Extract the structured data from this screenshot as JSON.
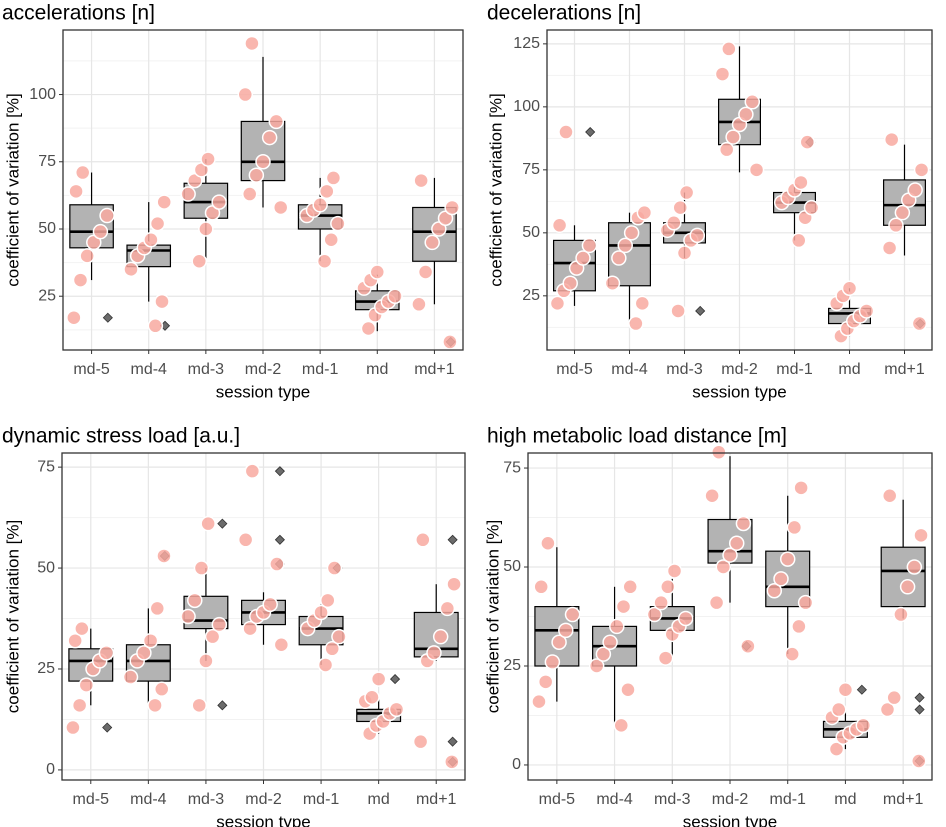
{
  "chart_data": [
    {
      "type": "box",
      "title": "accelerations [n]",
      "x_label": "session type",
      "y_label": "coefficient of variation [%]",
      "categories": [
        "md-5",
        "md-4",
        "md-3",
        "md-2",
        "md-1",
        "md",
        "md+1"
      ],
      "ylim": [
        5,
        124
      ],
      "yticks": [
        25,
        50,
        75,
        100
      ],
      "grid": true,
      "box_color": "#b3b3b3",
      "point_color": "#f8a9a0",
      "outlier_color": "#6b6b6b",
      "boxes": [
        {
          "whisker_low": 31,
          "q1": 43,
          "median": 49,
          "q3": 59,
          "whisker_high": 71,
          "outliers": [
            17
          ],
          "points": [
            17,
            31,
            40,
            45,
            49,
            55,
            64,
            71
          ]
        },
        {
          "whisker_low": 23,
          "q1": 36,
          "median": 42,
          "q3": 44,
          "whisker_high": 60,
          "outliers": [
            14
          ],
          "points": [
            14,
            23,
            35,
            40,
            43,
            46,
            52,
            60
          ]
        },
        {
          "whisker_low": 38,
          "q1": 54,
          "median": 60,
          "q3": 67,
          "whisker_high": 76,
          "outliers": [],
          "points": [
            38,
            50,
            56,
            60,
            63,
            68,
            72,
            76
          ]
        },
        {
          "whisker_low": 58,
          "q1": 68,
          "median": 75,
          "q3": 90,
          "whisker_high": 114,
          "outliers": [],
          "points": [
            58,
            63,
            70,
            75,
            84,
            90,
            100,
            119
          ]
        },
        {
          "whisker_low": 38,
          "q1": 50,
          "median": 55,
          "q3": 59,
          "whisker_high": 69,
          "outliers": [],
          "points": [
            38,
            46,
            52,
            55,
            57,
            59,
            64,
            69
          ]
        },
        {
          "whisker_low": 12,
          "q1": 20,
          "median": 23,
          "q3": 27,
          "whisker_high": 33,
          "outliers": [],
          "points": [
            13,
            18,
            21,
            23,
            25,
            28,
            31,
            34
          ]
        },
        {
          "whisker_low": 22,
          "q1": 38,
          "median": 49,
          "q3": 58,
          "whisker_high": 69,
          "outliers": [
            8
          ],
          "points": [
            8,
            22,
            34,
            45,
            50,
            54,
            58,
            68
          ]
        }
      ]
    },
    {
      "type": "box",
      "title": "decelerations [n]",
      "x_label": "session type",
      "y_label": "coefficient of variation [%]",
      "categories": [
        "md-5",
        "md-4",
        "md-3",
        "md-2",
        "md-1",
        "md",
        "md+1"
      ],
      "ylim": [
        3.5,
        130.5
      ],
      "yticks": [
        25,
        50,
        75,
        100,
        125
      ],
      "grid": true,
      "box_color": "#b3b3b3",
      "point_color": "#f8a9a0",
      "outlier_color": "#6b6b6b",
      "boxes": [
        {
          "whisker_low": 21,
          "q1": 27,
          "median": 38,
          "q3": 47,
          "whisker_high": 53,
          "outliers": [
            90
          ],
          "points": [
            22,
            27,
            30,
            36,
            40,
            45,
            53,
            90
          ]
        },
        {
          "whisker_low": 14,
          "q1": 29,
          "median": 45,
          "q3": 54,
          "whisker_high": 58,
          "outliers": [],
          "points": [
            14,
            22,
            30,
            40,
            45,
            50,
            56,
            58
          ]
        },
        {
          "whisker_low": 40,
          "q1": 46,
          "median": 50,
          "q3": 54,
          "whisker_high": 66,
          "outliers": [
            19
          ],
          "points": [
            19,
            42,
            47,
            49,
            51,
            54,
            60,
            66
          ]
        },
        {
          "whisker_low": 74,
          "q1": 85,
          "median": 94,
          "q3": 103,
          "whisker_high": 124,
          "outliers": [],
          "points": [
            75,
            83,
            88,
            93,
            97,
            102,
            113,
            123
          ]
        },
        {
          "whisker_low": 47,
          "q1": 58,
          "median": 62,
          "q3": 66,
          "whisker_high": 70,
          "outliers": [
            86
          ],
          "points": [
            47,
            56,
            60,
            62,
            64,
            67,
            70,
            86
          ]
        },
        {
          "whisker_low": 9,
          "q1": 14,
          "median": 18,
          "q3": 20,
          "whisker_high": 28,
          "outliers": [],
          "points": [
            9,
            12,
            15,
            17,
            19,
            22,
            25,
            28
          ]
        },
        {
          "whisker_low": 41,
          "q1": 53,
          "median": 61,
          "q3": 71,
          "whisker_high": 85,
          "outliers": [
            14
          ],
          "points": [
            14,
            44,
            53,
            58,
            63,
            67,
            75,
            87
          ]
        }
      ]
    },
    {
      "type": "box",
      "title": "dynamic stress load [a.u.]",
      "x_label": "session type",
      "y_label": "coefficient of variation [%]",
      "categories": [
        "md-5",
        "md-4",
        "md-3",
        "md-2",
        "md-1",
        "md",
        "md+1"
      ],
      "ylim": [
        -2.5,
        78.5
      ],
      "yticks": [
        0,
        25,
        50,
        75
      ],
      "grid": true,
      "box_color": "#b3b3b3",
      "point_color": "#f8a9a0",
      "outlier_color": "#6b6b6b",
      "boxes": [
        {
          "whisker_low": 16,
          "q1": 22,
          "median": 27,
          "q3": 30,
          "whisker_high": 35,
          "outliers": [
            10.5
          ],
          "points": [
            10.5,
            16,
            21,
            25,
            27,
            29,
            32,
            35
          ]
        },
        {
          "whisker_low": 16,
          "q1": 22,
          "median": 27,
          "q3": 31,
          "whisker_high": 40,
          "outliers": [
            53
          ],
          "points": [
            16,
            20,
            23,
            27,
            29,
            32,
            40,
            53
          ]
        },
        {
          "whisker_low": 27,
          "q1": 35,
          "median": 37,
          "q3": 43,
          "whisker_high": 50,
          "outliers": [
            61,
            16
          ],
          "points": [
            16,
            27,
            33,
            36,
            38,
            42,
            50,
            61
          ]
        },
        {
          "whisker_low": 31,
          "q1": 36,
          "median": 39,
          "q3": 42,
          "whisker_high": 44,
          "outliers": [
            74,
            57,
            51
          ],
          "points": [
            31,
            35,
            38,
            39,
            41,
            51,
            57,
            74
          ]
        },
        {
          "whisker_low": 26,
          "q1": 31,
          "median": 35,
          "q3": 38,
          "whisker_high": 41,
          "outliers": [
            50
          ],
          "points": [
            26,
            30,
            33,
            35,
            37,
            39,
            42,
            50
          ]
        },
        {
          "whisker_low": 9,
          "q1": 12,
          "median": 14,
          "q3": 15,
          "whisker_high": 18,
          "outliers": [
            22.5
          ],
          "points": [
            9,
            11,
            12,
            14,
            15,
            17,
            18,
            22.5
          ]
        },
        {
          "whisker_low": 27,
          "q1": 28,
          "median": 30,
          "q3": 39,
          "whisker_high": 46,
          "outliers": [
            57,
            7,
            2
          ],
          "points": [
            2,
            7,
            27,
            29,
            33,
            40,
            46,
            57
          ]
        }
      ]
    },
    {
      "type": "box",
      "title": "high metabolic load distance [m]",
      "x_label": "session type",
      "y_label": "coefficient of variation [%]",
      "categories": [
        "md-5",
        "md-4",
        "md-3",
        "md-2",
        "md-1",
        "md",
        "md+1"
      ],
      "ylim": [
        -3.8,
        78.8
      ],
      "yticks": [
        0,
        25,
        50,
        75
      ],
      "grid": true,
      "box_color": "#b3b3b3",
      "point_color": "#f8a9a0",
      "outlier_color": "#6b6b6b",
      "boxes": [
        {
          "whisker_low": 16,
          "q1": 25,
          "median": 34,
          "q3": 40,
          "whisker_high": 55,
          "outliers": [],
          "points": [
            16,
            21,
            26,
            31,
            34,
            38,
            45,
            56
          ]
        },
        {
          "whisker_low": 10,
          "q1": 25,
          "median": 30,
          "q3": 35,
          "whisker_high": 45,
          "outliers": [],
          "points": [
            10,
            19,
            25,
            28,
            31,
            35,
            40,
            45
          ]
        },
        {
          "whisker_low": 27,
          "q1": 34,
          "median": 37,
          "q3": 40,
          "whisker_high": 47,
          "outliers": [],
          "points": [
            27,
            33,
            35,
            37,
            38,
            41,
            45,
            49
          ]
        },
        {
          "whisker_low": 41,
          "q1": 51,
          "median": 54,
          "q3": 62,
          "whisker_high": 78,
          "outliers": [
            30
          ],
          "points": [
            30,
            41,
            50,
            53,
            56,
            61,
            68,
            79
          ]
        },
        {
          "whisker_low": 28,
          "q1": 40,
          "median": 45,
          "q3": 54,
          "whisker_high": 68,
          "outliers": [],
          "points": [
            28,
            35,
            41,
            44,
            47,
            52,
            60,
            70
          ]
        },
        {
          "whisker_low": 4,
          "q1": 7,
          "median": 9,
          "q3": 11,
          "whisker_high": 14,
          "outliers": [
            19
          ],
          "points": [
            4,
            7,
            8,
            9,
            10,
            12,
            14,
            19
          ]
        },
        {
          "whisker_low": 37,
          "q1": 40,
          "median": 49,
          "q3": 55,
          "whisker_high": 67,
          "outliers": [
            17,
            14,
            1
          ],
          "points": [
            1,
            14,
            17,
            38,
            45,
            50,
            58,
            68
          ]
        }
      ]
    }
  ]
}
